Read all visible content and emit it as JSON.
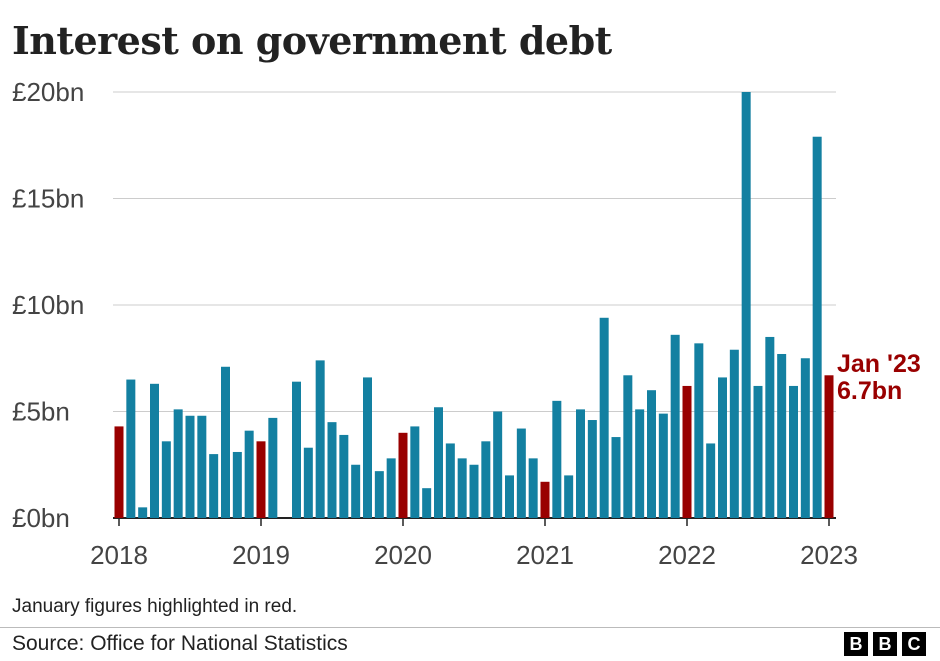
{
  "chart_data": {
    "type": "bar",
    "title": "Interest on government debt",
    "xlabel": "",
    "ylabel": "",
    "ylim": [
      0,
      20
    ],
    "y_ticks": [
      0,
      5,
      10,
      15,
      20
    ],
    "y_tick_labels": [
      "£0bn",
      "£5bn",
      "£10bn",
      "£15bn",
      "£20bn"
    ],
    "x_tick_labels": [
      "2018",
      "2019",
      "2020",
      "2021",
      "2022",
      "2023"
    ],
    "start_month": "2018-01",
    "values": [
      4.3,
      6.5,
      0.5,
      6.3,
      3.6,
      5.1,
      4.8,
      4.8,
      3.0,
      7.1,
      3.1,
      4.1,
      3.6,
      4.7,
      0.0,
      6.4,
      3.3,
      7.4,
      4.5,
      3.9,
      2.5,
      6.6,
      2.2,
      2.8,
      4.0,
      4.3,
      1.4,
      5.2,
      3.5,
      2.8,
      2.5,
      3.6,
      5.0,
      2.0,
      4.2,
      2.8,
      1.7,
      5.5,
      2.0,
      5.1,
      4.6,
      9.4,
      3.8,
      6.7,
      5.1,
      6.0,
      4.9,
      8.6,
      6.2,
      8.2,
      3.5,
      6.6,
      7.9,
      20.0,
      6.2,
      8.5,
      7.7,
      6.2,
      7.5,
      17.9,
      6.7
    ],
    "highlight_color": "#990000",
    "bar_color": "#1380A1",
    "annotation": {
      "label": "Jan '23",
      "value_text": "6.7bn"
    },
    "note": "January figures highlighted in red."
  },
  "footer": {
    "source": "Source: Office for National Statistics",
    "logo": [
      "B",
      "B",
      "C"
    ]
  }
}
